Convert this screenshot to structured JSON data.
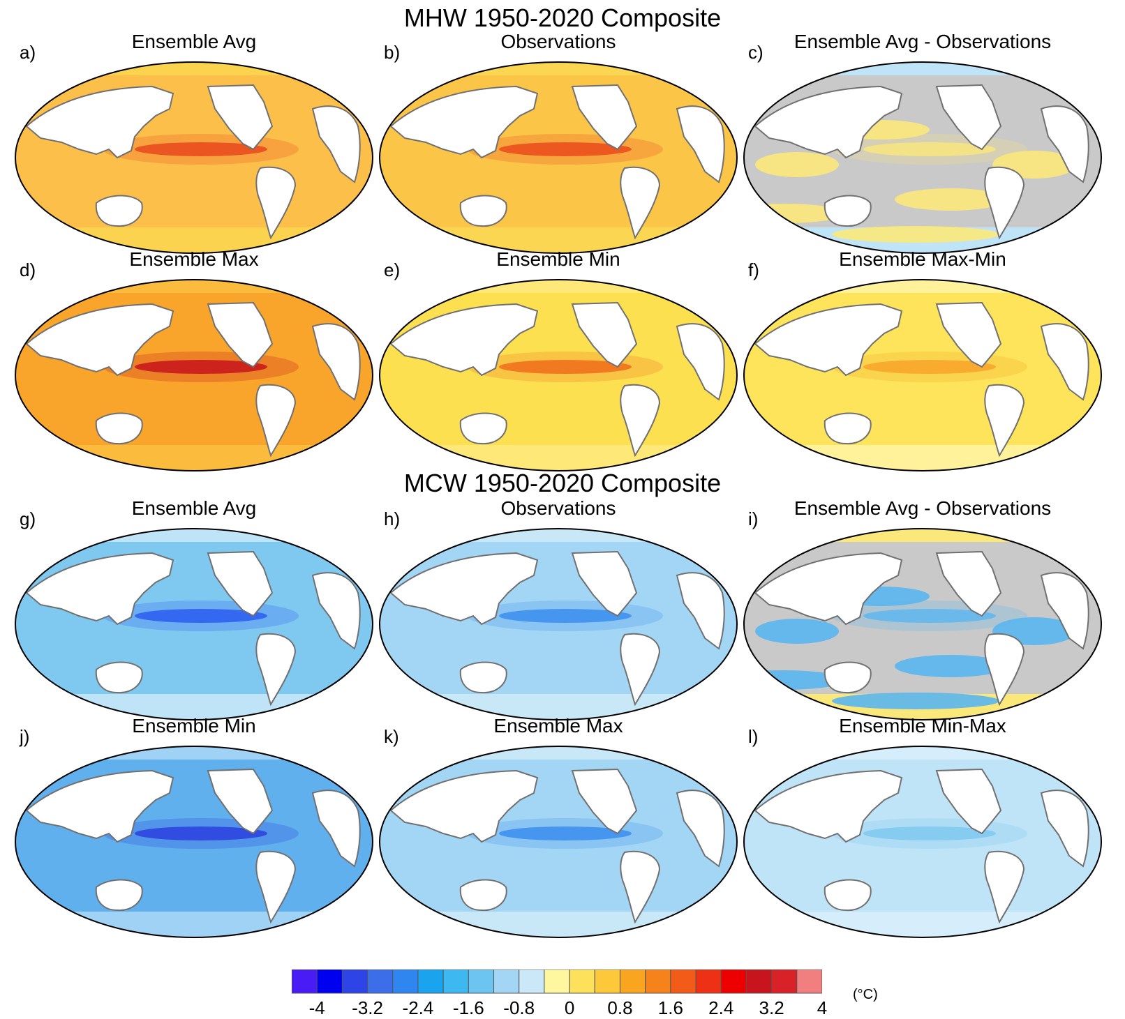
{
  "sections": [
    {
      "title": "MHW 1950-2020 Composite"
    },
    {
      "title": "MCW 1950-2020 Composite"
    }
  ],
  "panels": [
    {
      "letter": "a)",
      "title": "Ensemble Avg",
      "base": "#fcc04a",
      "accent": "#e8481c",
      "highlat": "#fbd34e",
      "gray": false
    },
    {
      "letter": "b)",
      "title": "Observations",
      "base": "#fbc548",
      "accent": "#ea4a1a",
      "highlat": "#fbd653",
      "gray": false
    },
    {
      "letter": "c)",
      "title": "Ensemble Avg - Observations",
      "base": "#c9c9c9",
      "accent": "#fbe87a",
      "highlat": "#bfe3f7",
      "gray": true
    },
    {
      "letter": "d)",
      "title": "Ensemble Max",
      "base": "#f9a42b",
      "accent": "#c8141c",
      "highlat": "#fbbb3c",
      "gray": false
    },
    {
      "letter": "e)",
      "title": "Ensemble Min",
      "base": "#fde050",
      "accent": "#f06c1a",
      "highlat": "#fee878",
      "gray": false
    },
    {
      "letter": "f)",
      "title": "Ensemble Max-Min",
      "base": "#fde45a",
      "accent": "#f9a42b",
      "highlat": "#fff29a",
      "gray": false
    },
    {
      "letter": "g)",
      "title": "Ensemble Avg",
      "base": "#7fc8f0",
      "accent": "#2d5df0",
      "highlat": "#bfe3f7",
      "gray": false
    },
    {
      "letter": "h)",
      "title": "Observations",
      "base": "#a3d6f5",
      "accent": "#3b8ef0",
      "highlat": "#c8e8f8",
      "gray": false
    },
    {
      "letter": "i)",
      "title": "Ensemble Avg - Observations",
      "base": "#c9c9c9",
      "accent": "#5ab6f0",
      "highlat": "#fbe87a",
      "gray": true
    },
    {
      "letter": "j)",
      "title": "Ensemble Min",
      "base": "#5fb0ec",
      "accent": "#2a3fe0",
      "highlat": "#9fd2f4",
      "gray": false
    },
    {
      "letter": "k)",
      "title": "Ensemble Max",
      "base": "#a3d6f5",
      "accent": "#3b8ef0",
      "highlat": "#c8e8f8",
      "gray": false
    },
    {
      "letter": "l)",
      "title": "Ensemble Min-Max",
      "base": "#bfe3f7",
      "accent": "#7fc8f0",
      "highlat": "#d6eefb",
      "gray": false
    }
  ],
  "colorbar": {
    "colors": [
      "#4a1cf5",
      "#0000f0",
      "#2d44e6",
      "#3b6ee8",
      "#2f86f0",
      "#1aa4f0",
      "#3db8f0",
      "#6cc4f0",
      "#a3d6f5",
      "#cbe8f8",
      "#fff6a0",
      "#fee15a",
      "#fdc83a",
      "#f9a520",
      "#f5821a",
      "#f25c18",
      "#ee3014",
      "#ee0000",
      "#c8141c",
      "#d82228",
      "#f27f7f"
    ],
    "tick_labels": [
      "-4",
      "-3.2",
      "-2.4",
      "-1.6",
      "-0.8",
      "0",
      "0.8",
      "1.6",
      "2.4",
      "3.2",
      "4"
    ],
    "unit": "(°C)"
  }
}
